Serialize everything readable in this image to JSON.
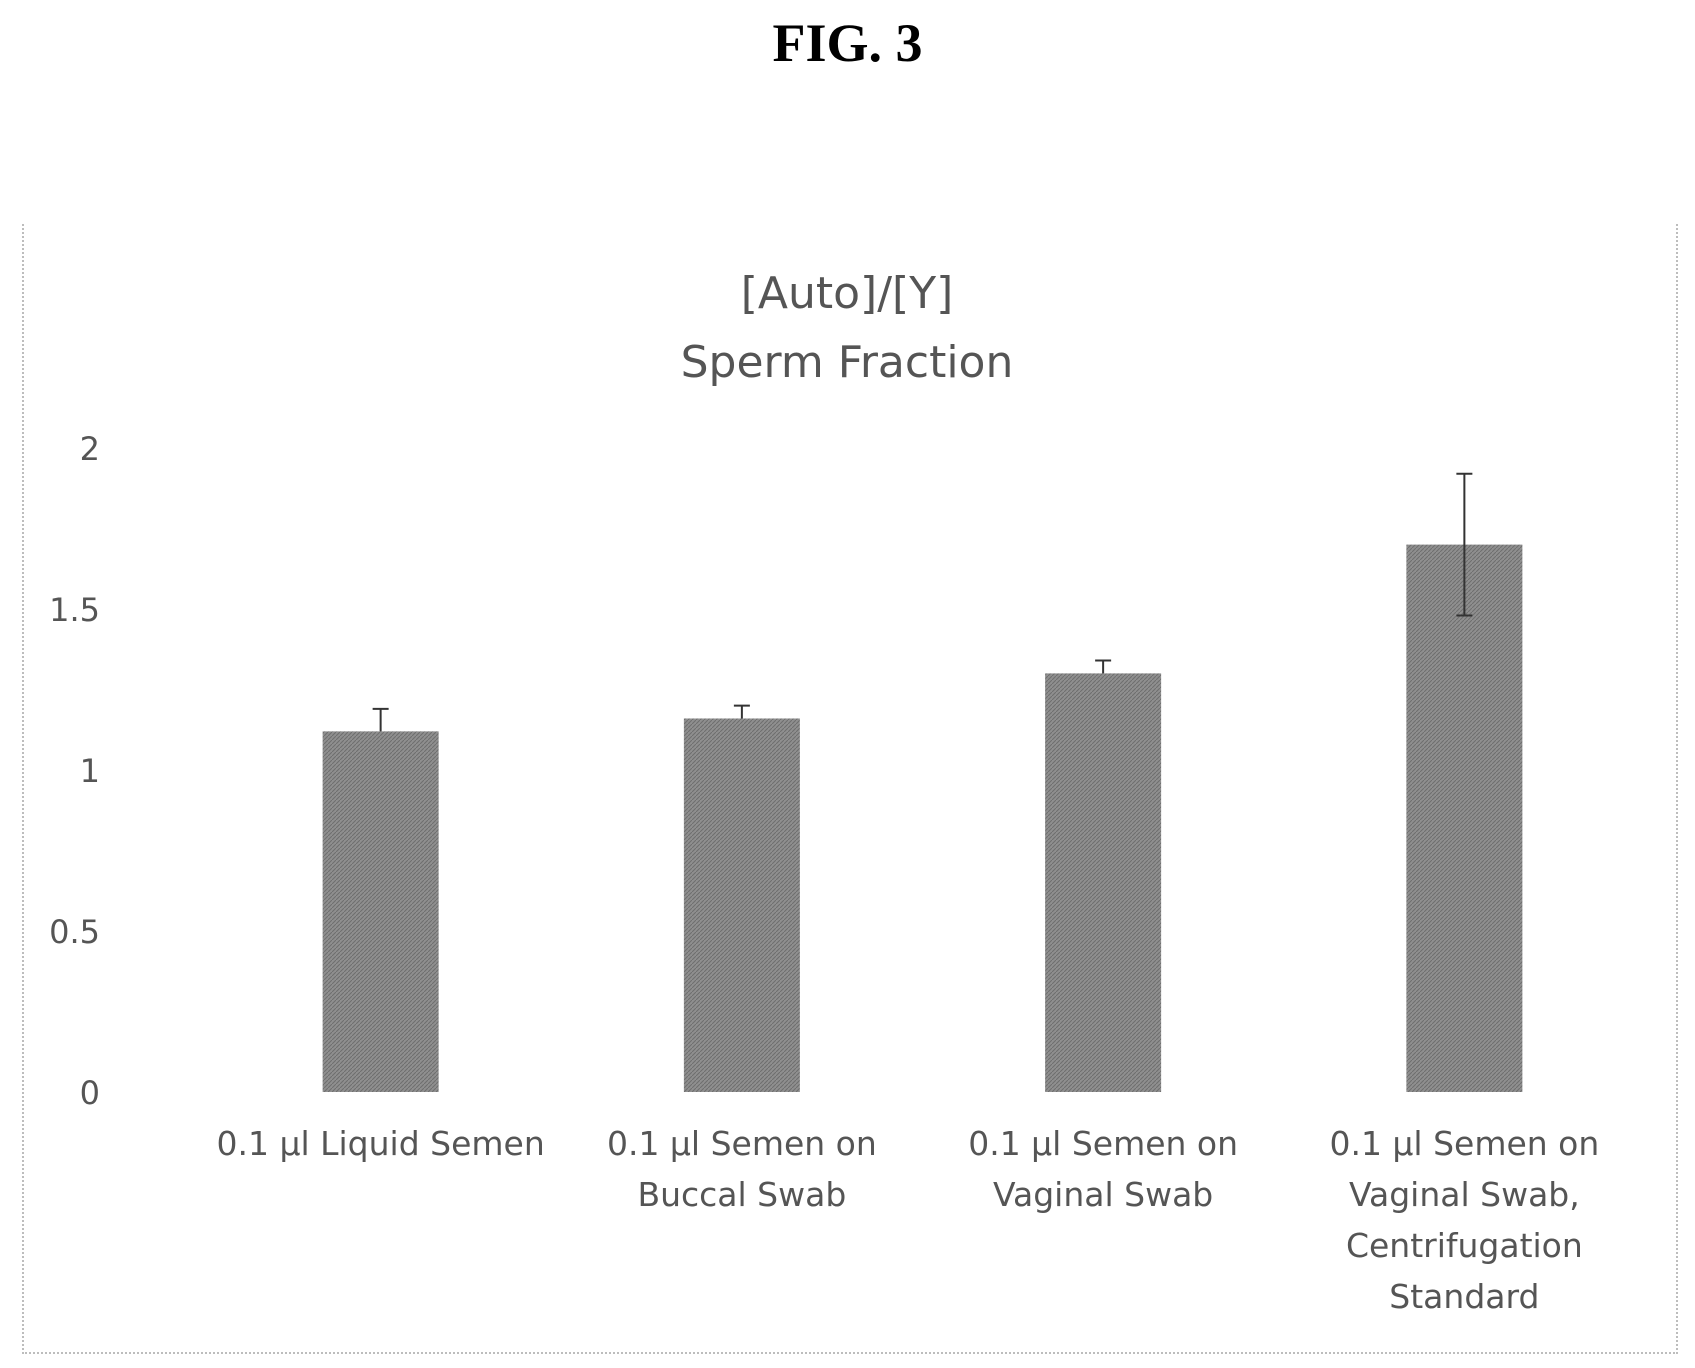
{
  "figure_label": "FIG. 3",
  "chart_data": {
    "type": "bar",
    "title": "[Auto]/[Y]",
    "subtitle": "Sperm Fraction",
    "xlabel": "",
    "ylabel": "",
    "ylim": [
      0,
      2
    ],
    "yticks": [
      "0",
      "0.5",
      "1",
      "1.5",
      "2"
    ],
    "ytick_values": [
      0,
      0.5,
      1,
      1.5,
      2
    ],
    "grid": false,
    "categories": [
      [
        "0.1 µl Liquid Semen"
      ],
      [
        "0.1 µl Semen on",
        "Buccal Swab"
      ],
      [
        "0.1 µl Semen on",
        "Vaginal Swab"
      ],
      [
        "0.1 µl Semen on",
        "Vaginal Swab,",
        "Centrifugation",
        "Standard"
      ]
    ],
    "values": [
      1.12,
      1.16,
      1.3,
      1.7
    ],
    "error_plus": [
      0.07,
      0.04,
      0.04,
      0.22
    ],
    "error_minus": [
      0.0,
      0.0,
      0.0,
      0.22
    ],
    "bar_color": "#8a8a8a",
    "error_color": "#333333"
  }
}
